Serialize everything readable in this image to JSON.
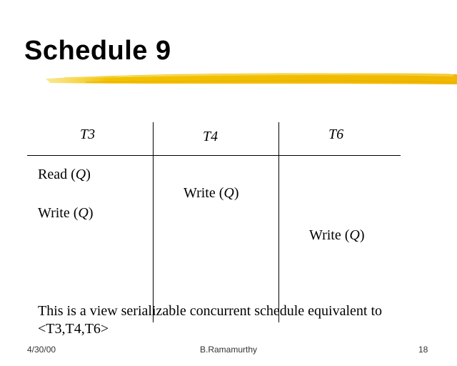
{
  "slide": {
    "title": "Schedule 9",
    "accent_color": "#f2c200"
  },
  "table": {
    "columns": [
      "T3",
      "T4",
      "T6"
    ],
    "operations": [
      {
        "op": "Read",
        "arg": "Q",
        "column": "T3"
      },
      {
        "op": "Write",
        "arg": "Q",
        "column": "T4"
      },
      {
        "op": "Write",
        "arg": "Q",
        "column": "T3"
      },
      {
        "op": "Write",
        "arg": "Q",
        "column": "T6"
      }
    ]
  },
  "note": {
    "line1": "This is a view serializable concurrent schedule equivalent to",
    "line2": "<T3,T4,T6>"
  },
  "footer": {
    "date": "4/30/00",
    "author": "B.Ramamurthy",
    "page": "18"
  }
}
